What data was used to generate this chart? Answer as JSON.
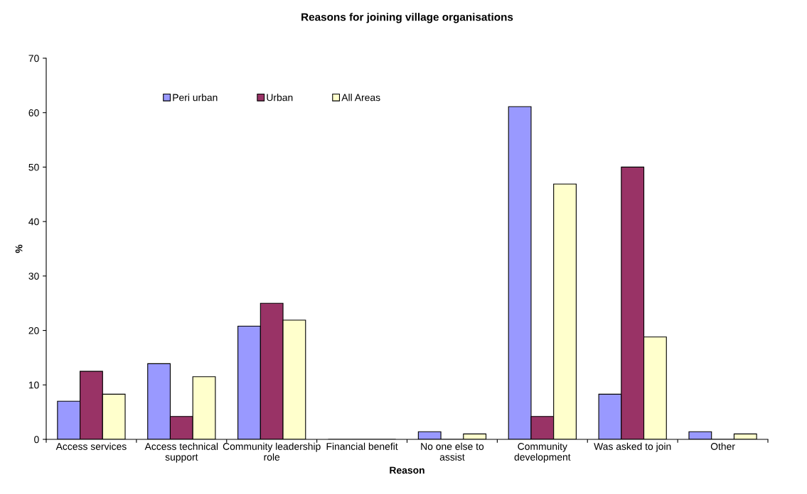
{
  "chart_data": {
    "type": "bar",
    "title": "Reasons for joining village organisations",
    "xlabel": "Reason",
    "ylabel": "%",
    "categories": [
      "Access services",
      "Access technical support",
      "Community leadership role",
      "Financial benefit",
      "No one else to assist",
      "Community development",
      "Was asked to join",
      "Other"
    ],
    "series": [
      {
        "name": "Peri urban",
        "color": "#9999ff",
        "values": [
          7.0,
          13.9,
          20.8,
          0,
          1.4,
          61.1,
          8.3,
          1.4
        ]
      },
      {
        "name": "Urban",
        "color": "#993366",
        "values": [
          12.5,
          4.2,
          25.0,
          0,
          0,
          4.2,
          50.0,
          0
        ]
      },
      {
        "name": "All Areas",
        "color": "#ffffcc",
        "values": [
          8.3,
          11.5,
          21.9,
          0,
          1.0,
          46.9,
          18.8,
          1.0
        ]
      }
    ],
    "ylim": [
      0,
      70
    ],
    "yticks": [
      0,
      10,
      20,
      30,
      40,
      50,
      60,
      70
    ],
    "grid": false,
    "legend": "top left"
  }
}
